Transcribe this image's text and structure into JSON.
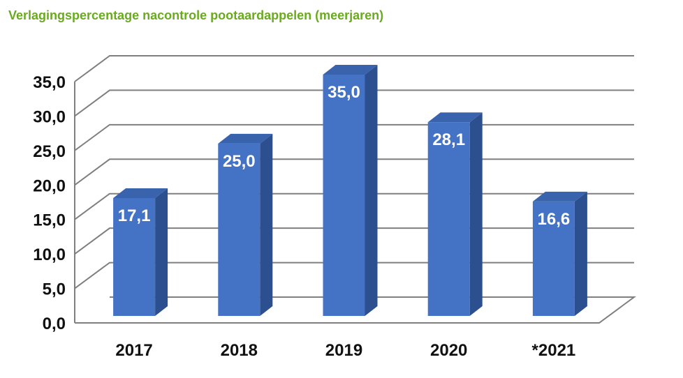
{
  "chart_data": {
    "type": "bar",
    "title": "Verlagingspercentage nacontrole pootaardappelen (meerjaren)",
    "categories": [
      "2017",
      "2018",
      "2019",
      "2020",
      "*2021"
    ],
    "values": [
      17.1,
      25.0,
      35.0,
      28.1,
      16.6
    ],
    "value_labels": [
      "17,1",
      "25,0",
      "35,0",
      "28,1",
      "16,6"
    ],
    "yticks": [
      "0,0",
      "5,0",
      "10,0",
      "15,0",
      "20,0",
      "25,0",
      "30,0",
      "35,0"
    ],
    "ylim": [
      0,
      35
    ],
    "grid": true,
    "legend": "none",
    "colors": {
      "bar_front": "#4472c4",
      "bar_side": "#2c4f8f",
      "bar_top": "#3a63ad",
      "grid": "#7f7f7f",
      "title": "#6aaa1f"
    }
  }
}
